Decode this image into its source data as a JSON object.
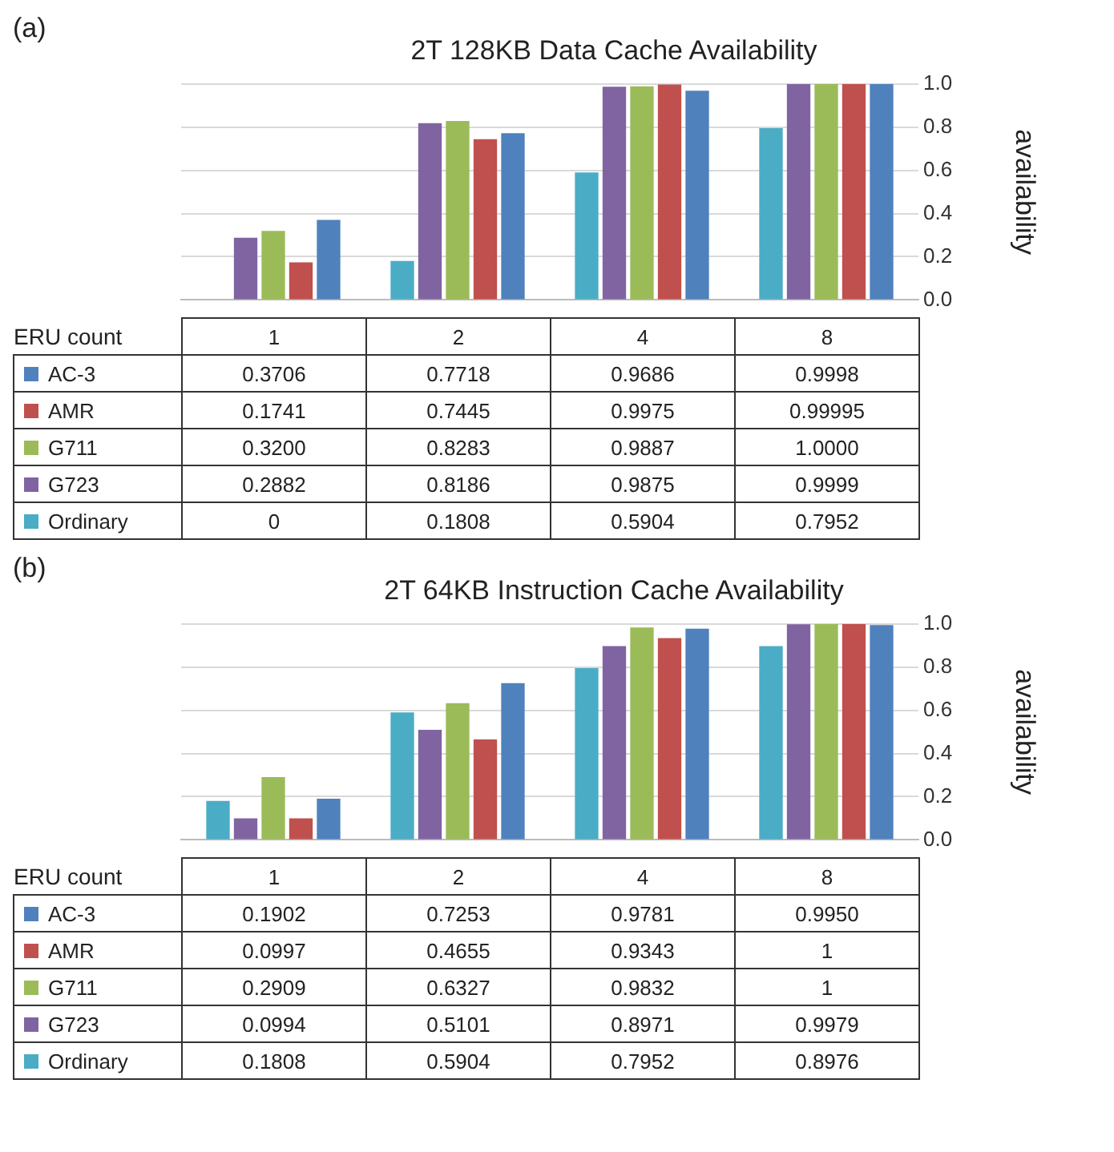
{
  "chart_data": [
    {
      "type": "bar",
      "title": "2T 128KB Data Cache Availability",
      "xlabel": "ERU count",
      "ylabel": "availability",
      "annotations": [
        "(a)"
      ],
      "categories": [
        "1",
        "2",
        "4",
        "8"
      ],
      "ylim": [
        0,
        1
      ],
      "yticks": [
        {
          "value": 0,
          "label": "0.0"
        },
        {
          "value": 0.2,
          "label": "0.2"
        },
        {
          "value": 0.4,
          "label": "0.4"
        },
        {
          "value": 0.6,
          "label": "0.6"
        },
        {
          "value": 0.8,
          "label": "0.8"
        },
        {
          "value": 1,
          "label": "1.0"
        }
      ],
      "grid": "y",
      "legend": "bottom",
      "series": [
        {
          "name": "Ordinary",
          "color": "#4bacc6",
          "values": [
            0,
            0.1808,
            0.5904,
            0.7952
          ],
          "value_labels": [
            "0",
            "0.1808",
            "0.5904",
            "0.7952"
          ]
        },
        {
          "name": "G723",
          "color": "#8064a2",
          "values": [
            0.2882,
            0.8186,
            0.9875,
            0.9999
          ],
          "value_labels": [
            "0.2882",
            "0.8186",
            "0.9875",
            "0.9999"
          ]
        },
        {
          "name": "G711",
          "color": "#9bbb59",
          "values": [
            0.32,
            0.8283,
            0.9887,
            1
          ],
          "value_labels": [
            "0.3200",
            "0.8283",
            "0.9887",
            "1.0000"
          ]
        },
        {
          "name": "AMR",
          "color": "#c0504d",
          "values": [
            0.1741,
            0.7445,
            0.9975,
            0.99995
          ],
          "value_labels": [
            "0.1741",
            "0.7445",
            "0.9975",
            "0.99995"
          ]
        },
        {
          "name": "AC-3",
          "color": "#4f81bd",
          "values": [
            0.3706,
            0.7718,
            0.9686,
            0.9998
          ],
          "value_labels": [
            "0.3706",
            "0.7718",
            "0.9686",
            "0.9998"
          ]
        }
      ]
    },
    {
      "type": "bar",
      "title": "2T 64KB Instruction Cache Availability",
      "xlabel": "ERU count",
      "ylabel": "availability",
      "annotations": [
        "(b)"
      ],
      "categories": [
        "1",
        "2",
        "4",
        "8"
      ],
      "ylim": [
        0,
        1
      ],
      "yticks": [
        {
          "value": 0,
          "label": "0.0"
        },
        {
          "value": 0.2,
          "label": "0.2"
        },
        {
          "value": 0.4,
          "label": "0.4"
        },
        {
          "value": 0.6,
          "label": "0.6"
        },
        {
          "value": 0.8,
          "label": "0.8"
        },
        {
          "value": 1,
          "label": "1.0"
        }
      ],
      "grid": "y",
      "legend": "bottom",
      "series": [
        {
          "name": "Ordinary",
          "color": "#4bacc6",
          "values": [
            0.1808,
            0.5904,
            0.7952,
            0.8976
          ],
          "value_labels": [
            "0.1808",
            "0.5904",
            "0.7952",
            "0.8976"
          ]
        },
        {
          "name": "G723",
          "color": "#8064a2",
          "values": [
            0.0994,
            0.5101,
            0.8971,
            0.9979
          ],
          "value_labels": [
            "0.0994",
            "0.5101",
            "0.8971",
            "0.9979"
          ]
        },
        {
          "name": "G711",
          "color": "#9bbb59",
          "values": [
            0.2909,
            0.6327,
            0.9832,
            1
          ],
          "value_labels": [
            "0.2909",
            "0.6327",
            "0.9832",
            "1"
          ]
        },
        {
          "name": "AMR",
          "color": "#c0504d",
          "values": [
            0.0997,
            0.4655,
            0.9343,
            1
          ],
          "value_labels": [
            "0.0997",
            "0.4655",
            "0.9343",
            "1"
          ]
        },
        {
          "name": "AC-3",
          "color": "#4f81bd",
          "values": [
            0.1902,
            0.7253,
            0.9781,
            0.995
          ],
          "value_labels": [
            "0.1902",
            "0.7253",
            "0.9781",
            "0.9950"
          ]
        }
      ]
    }
  ]
}
